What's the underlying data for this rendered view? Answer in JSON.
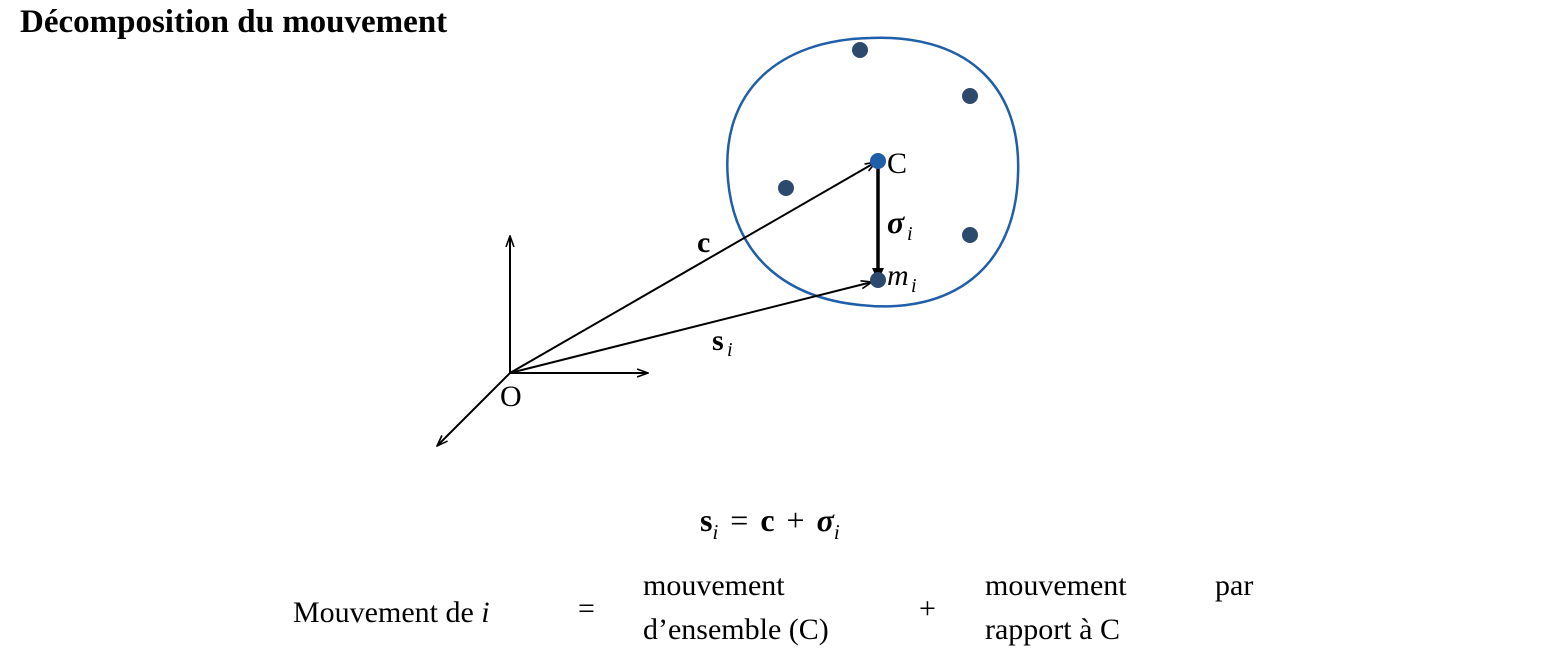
{
  "title": "Décomposition du mouvement",
  "diagram": {
    "origin_label": "O",
    "center_label": "C",
    "c_label": "c",
    "s_label": "s",
    "s_sub": "i",
    "sigma_label": "σ",
    "sigma_sub": "i",
    "m_label": "m",
    "m_sub": "i",
    "colors": {
      "boundary": "#1f5ea8",
      "dot": "#2c4a6e",
      "center_dot": "#1f5ea8",
      "ink": "#000000"
    }
  },
  "equation": {
    "lhs": "s",
    "lhs_sub": "i",
    "eq": "=",
    "c": "c",
    "plus": "+",
    "sigma": "σ",
    "sigma_sub": "i"
  },
  "decomposition": {
    "lhs_text": "Mouvement de ",
    "lhs_var": "i",
    "equals": "=",
    "term1_line1": "mouvement",
    "term1_line2": "d’ensemble (C)",
    "plus": "+",
    "term2_line1": "mouvement",
    "term2_word_par": "par",
    "term2_line2": "rapport à C"
  }
}
